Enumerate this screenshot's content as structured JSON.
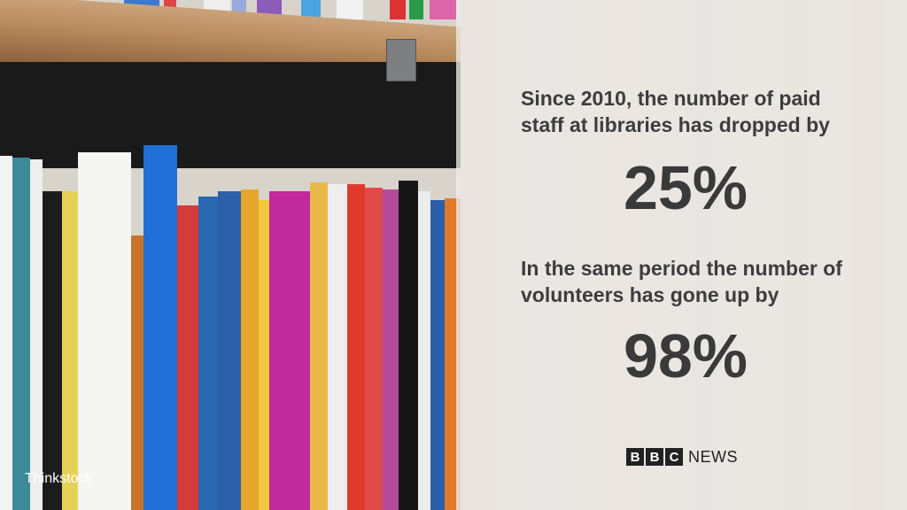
{
  "headline1": "Since 2010, the number of paid staff at libraries has dropped by",
  "stat1": "25%",
  "headline2": "In the same period the number of volunteers has gone up by",
  "stat2": "98%",
  "logo": {
    "letters": [
      "B",
      "B",
      "C"
    ],
    "suffix": "NEWS"
  },
  "credit": "Thinkstock",
  "colors": {
    "text": "#3d3d3d",
    "overlay": "#eeece8"
  }
}
